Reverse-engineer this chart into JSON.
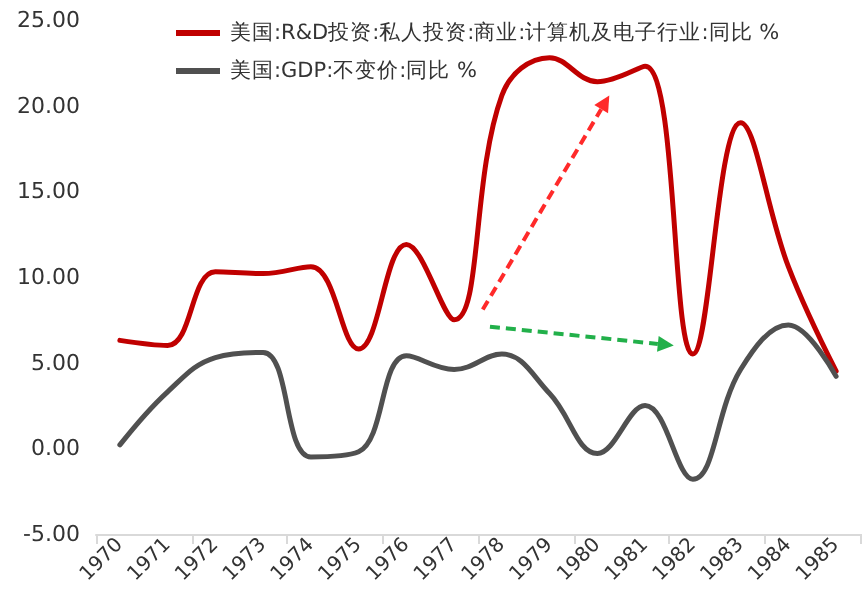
{
  "chart_data": {
    "type": "line",
    "categories": [
      "1970",
      "1971",
      "1972",
      "1973",
      "1974",
      "1975",
      "1976",
      "1977",
      "1978",
      "1979",
      "1980",
      "1981",
      "1982",
      "1983",
      "1984",
      "1985"
    ],
    "series": [
      {
        "name": "美国:R&D投资:私人投资:商业:计算机及电子行业:同比 %",
        "color": "#c00000",
        "values": [
          6.3,
          6.0,
          10.3,
          10.2,
          10.6,
          5.8,
          11.9,
          7.5,
          20.6,
          22.8,
          21.4,
          22.3,
          5.5,
          19.0,
          10.6,
          4.5
        ]
      },
      {
        "name": "美国:GDP:不变价:同比 %",
        "color": "#505050",
        "values": [
          0.2,
          3.3,
          5.3,
          5.6,
          -0.5,
          -0.2,
          5.4,
          4.6,
          5.5,
          3.2,
          -0.3,
          2.5,
          -1.8,
          4.6,
          7.2,
          4.2
        ]
      }
    ],
    "ylim": [
      -5,
      25
    ],
    "yticks": [
      {
        "value": -5,
        "label": "-5.00"
      },
      {
        "value": 0,
        "label": "0.00"
      },
      {
        "value": 5,
        "label": "5.00"
      },
      {
        "value": 10,
        "label": "10.00"
      },
      {
        "value": 15,
        "label": "15.00"
      },
      {
        "value": 20,
        "label": "20.00"
      },
      {
        "value": 25,
        "label": "25.00"
      }
    ],
    "grid": false,
    "legend": "top",
    "marker": "none",
    "line_style": "solid"
  }
}
